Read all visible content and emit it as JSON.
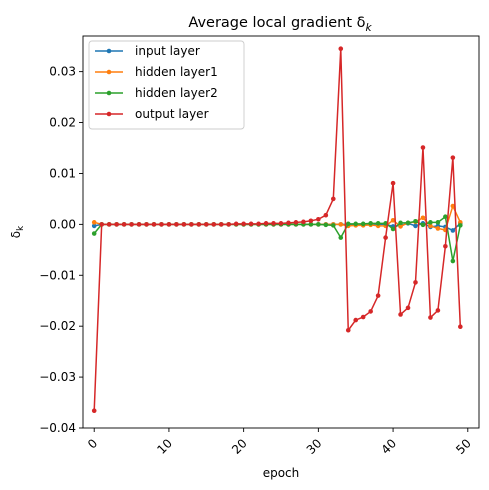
{
  "chart_data": {
    "type": "line",
    "title": "Average local gradient δ",
    "title_subscript": "k",
    "xlabel": "epoch",
    "ylabel": "δ",
    "ylabel_subscript": "k",
    "xlim": [
      -1.5,
      51.5
    ],
    "ylim": [
      -0.04,
      0.037
    ],
    "x_ticks": [
      0,
      10,
      20,
      30,
      40,
      50
    ],
    "x_tick_labels": [
      "0",
      "10",
      "20",
      "30",
      "40",
      "50"
    ],
    "y_ticks": [
      0.03,
      0.02,
      0.01,
      0.0,
      -0.01,
      -0.02,
      -0.03,
      -0.04
    ],
    "y_tick_labels": [
      "0.03",
      "0.02",
      "0.01",
      "0.00",
      "−0.01",
      "−0.02",
      "−0.03",
      "−0.04"
    ],
    "x_tick_rotation": -45,
    "grid": false,
    "legend_position": "top-left",
    "x": [
      0,
      1,
      2,
      3,
      4,
      5,
      6,
      7,
      8,
      9,
      10,
      11,
      12,
      13,
      14,
      15,
      16,
      17,
      18,
      19,
      20,
      21,
      22,
      23,
      24,
      25,
      26,
      27,
      28,
      29,
      30,
      31,
      32,
      33,
      34,
      35,
      36,
      37,
      38,
      39,
      40,
      41,
      42,
      43,
      44,
      45,
      46,
      47,
      48,
      49
    ],
    "series": [
      {
        "name": "input layer",
        "color": "#1f77b4",
        "values": [
          -0.0003,
          0,
          0,
          0,
          0,
          0,
          0,
          0,
          0,
          0,
          0,
          0,
          0,
          0,
          0,
          0,
          0,
          0,
          0,
          0,
          0,
          0,
          0,
          0,
          0,
          0,
          0,
          0,
          0,
          0,
          0,
          0,
          0,
          0,
          0,
          0,
          0,
          0,
          0,
          0,
          -0.0004,
          -0.0002,
          0.0002,
          -0.0003,
          0.0002,
          -0.0005,
          -0.0003,
          -0.0005,
          -0.0012,
          0.0002
        ]
      },
      {
        "name": "hidden layer1",
        "color": "#ff7f0e",
        "values": [
          0.0004,
          0,
          0,
          0,
          0,
          0,
          0,
          0,
          0,
          0,
          0,
          0,
          0,
          0,
          0,
          0,
          0,
          0,
          0,
          0,
          0,
          0,
          0,
          0,
          0,
          0,
          0,
          0,
          0,
          0,
          0,
          0,
          0,
          0,
          -0.0003,
          -0.0002,
          -0.0002,
          -0.0001,
          -0.0003,
          -0.0003,
          0.0008,
          -0.0004,
          0.0003,
          0.0005,
          0.0013,
          -0.0003,
          -0.0008,
          -0.0011,
          0.0036,
          0.0004
        ]
      },
      {
        "name": "hidden layer2",
        "color": "#2ca02c",
        "values": [
          -0.0018,
          0,
          0,
          0,
          0,
          0,
          0,
          0,
          0,
          0,
          0,
          0,
          0,
          0,
          0,
          0,
          0,
          0,
          0,
          0,
          0,
          0,
          0,
          0,
          0,
          0,
          0,
          0,
          0,
          0,
          0,
          -0.0001,
          -0.0002,
          -0.0026,
          0.0001,
          0.0001,
          0.0001,
          0.0002,
          0.0002,
          0.0002,
          -0.0009,
          0.0003,
          0.0003,
          0.0006,
          -0.0001,
          0.0004,
          0.0004,
          0.0015,
          -0.0072,
          -0.0002
        ]
      },
      {
        "name": "output layer",
        "color": "#d62728",
        "values": [
          -0.0366,
          0,
          0,
          0,
          0,
          0,
          0,
          0,
          0,
          0,
          0,
          0,
          0,
          0,
          0,
          0,
          0,
          0,
          0,
          0.0001,
          0.0001,
          0.0001,
          0.0001,
          0.0002,
          0.0002,
          0.0002,
          0.0003,
          0.0004,
          0.0005,
          0.0007,
          0.001,
          0.0018,
          0.005,
          0.0345,
          -0.0208,
          -0.0188,
          -0.0182,
          -0.0171,
          -0.014,
          -0.0026,
          0.0081,
          -0.0177,
          -0.0164,
          -0.0114,
          0.0151,
          -0.0183,
          -0.0169,
          -0.0043,
          0.0131,
          -0.0201
        ]
      }
    ]
  }
}
